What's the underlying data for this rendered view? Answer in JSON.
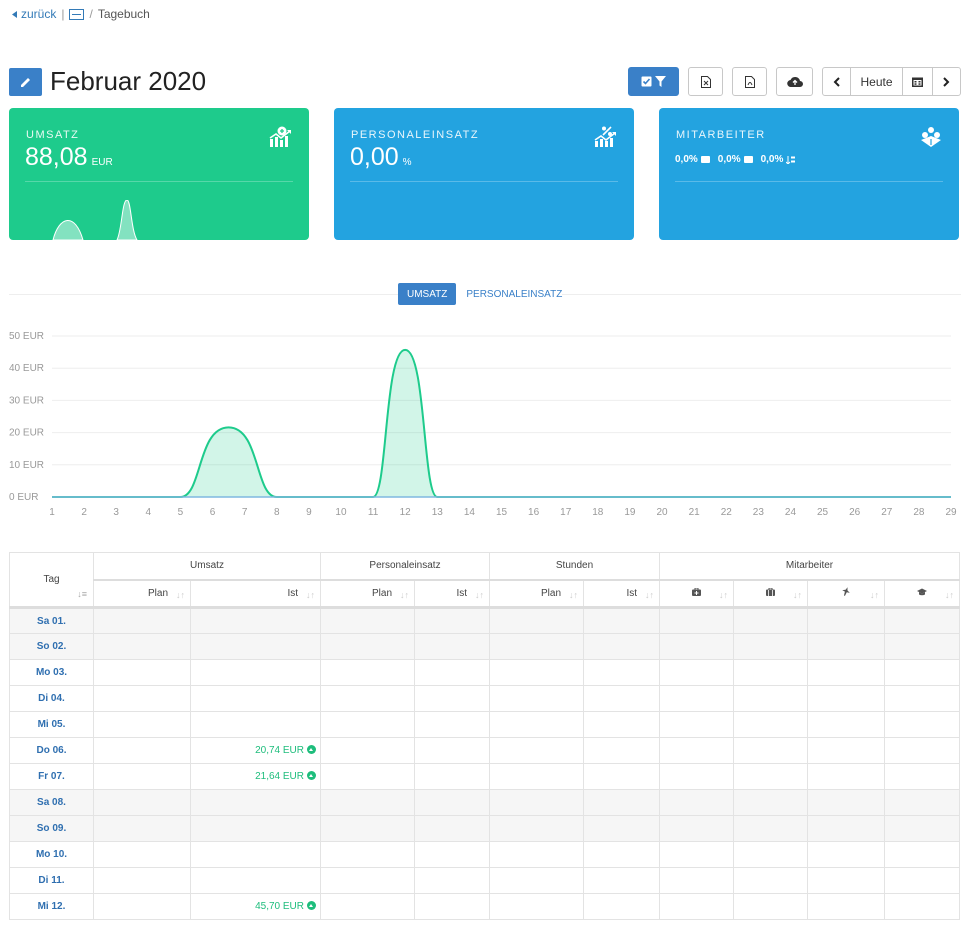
{
  "breadcrumb": {
    "back": "zurück",
    "sep1": "|",
    "sep2": "/",
    "current": "Tagebuch"
  },
  "page": {
    "title": "Februar 2020"
  },
  "toolbar": {
    "today": "Heute"
  },
  "cards": {
    "umsatz": {
      "label": "UMSATZ",
      "value": "88,08",
      "unit": "EUR"
    },
    "personal": {
      "label": "PERSONALEINSATZ",
      "value": "0,00",
      "unit": "%"
    },
    "mitarbeiter": {
      "label": "MITARBEITER",
      "v1": "0,0%",
      "v2": "0,0%",
      "v3": "0,0%"
    }
  },
  "tabs": {
    "umsatz": "UMSATZ",
    "personal": "PERSONALEINSATZ"
  },
  "chart_data": {
    "type": "area",
    "x": [
      1,
      2,
      3,
      4,
      5,
      6,
      7,
      8,
      9,
      10,
      11,
      12,
      13,
      14,
      15,
      16,
      17,
      18,
      19,
      20,
      21,
      22,
      23,
      24,
      25,
      26,
      27,
      28,
      29
    ],
    "values": [
      0,
      0,
      0,
      0,
      0,
      20.74,
      21.64,
      0,
      0,
      0,
      0,
      45.7,
      0,
      0,
      0,
      0,
      0,
      0,
      0,
      0,
      0,
      0,
      0,
      0,
      0,
      0,
      0,
      0,
      0
    ],
    "y_ticks": [
      "0 EUR",
      "10 EUR",
      "20 EUR",
      "30 EUR",
      "40 EUR",
      "50 EUR"
    ],
    "ylim": [
      0,
      50
    ],
    "series_color": "#1ecb8c"
  },
  "table": {
    "tag_header": "Tag",
    "groups": [
      "Umsatz",
      "Personaleinsatz",
      "Stunden",
      "Mitarbeiter"
    ],
    "sub": {
      "plan": "Plan",
      "ist": "Ist"
    },
    "rows": [
      {
        "day": "Sa 01.",
        "ist": "",
        "weekend": true
      },
      {
        "day": "So 02.",
        "ist": "",
        "weekend": true
      },
      {
        "day": "Mo 03.",
        "ist": "",
        "weekend": false
      },
      {
        "day": "Di 04.",
        "ist": "",
        "weekend": false
      },
      {
        "day": "Mi 05.",
        "ist": "",
        "weekend": false
      },
      {
        "day": "Do 06.",
        "ist": "20,74 EUR",
        "weekend": false
      },
      {
        "day": "Fr 07.",
        "ist": "21,64 EUR",
        "weekend": false
      },
      {
        "day": "Sa 08.",
        "ist": "",
        "weekend": true
      },
      {
        "day": "So 09.",
        "ist": "",
        "weekend": true
      },
      {
        "day": "Mo 10.",
        "ist": "",
        "weekend": false
      },
      {
        "day": "Di 11.",
        "ist": "",
        "weekend": false
      },
      {
        "day": "Mi 12.",
        "ist": "45,70 EUR",
        "weekend": false
      }
    ]
  }
}
